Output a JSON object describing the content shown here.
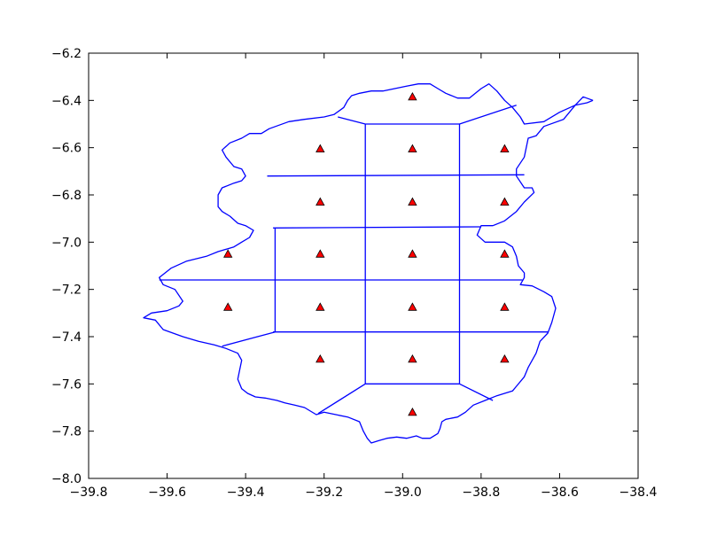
{
  "chart_data": {
    "type": "scatter",
    "title": "",
    "xlabel": "",
    "ylabel": "",
    "xlim": [
      -39.8,
      -38.4
    ],
    "ylim": [
      -8.0,
      -6.2
    ],
    "x_ticks": [
      -39.8,
      -39.6,
      -39.4,
      -39.2,
      -39.0,
      -38.8,
      -38.6,
      -38.4
    ],
    "y_ticks": [
      -8.0,
      -7.8,
      -7.6,
      -7.4,
      -7.2,
      -7.0,
      -6.8,
      -6.6,
      -6.4,
      -6.2
    ],
    "x_tick_labels": [
      "−39.8",
      "−39.6",
      "−39.4",
      "−39.2",
      "−39.0",
      "−38.8",
      "−38.6",
      "−38.4"
    ],
    "y_tick_labels": [
      "−8.0",
      "−7.8",
      "−7.6",
      "−7.4",
      "−7.2",
      "−7.0",
      "−6.8",
      "−6.6",
      "−6.4",
      "−6.2"
    ],
    "grid": false,
    "marker": "triangle",
    "marker_color": "#ff0000",
    "line_color": "#0000ff",
    "points": [
      {
        "x": -38.975,
        "y": -6.385
      },
      {
        "x": -39.21,
        "y": -6.605
      },
      {
        "x": -38.975,
        "y": -6.605
      },
      {
        "x": -38.74,
        "y": -6.605
      },
      {
        "x": -39.21,
        "y": -6.83
      },
      {
        "x": -38.975,
        "y": -6.83
      },
      {
        "x": -38.74,
        "y": -6.83
      },
      {
        "x": -39.445,
        "y": -7.05
      },
      {
        "x": -39.21,
        "y": -7.05
      },
      {
        "x": -38.975,
        "y": -7.05
      },
      {
        "x": -38.74,
        "y": -7.05
      },
      {
        "x": -39.445,
        "y": -7.275
      },
      {
        "x": -39.21,
        "y": -7.275
      },
      {
        "x": -38.975,
        "y": -7.275
      },
      {
        "x": -38.74,
        "y": -7.275
      },
      {
        "x": -39.21,
        "y": -7.495
      },
      {
        "x": -38.975,
        "y": -7.495
      },
      {
        "x": -38.74,
        "y": -7.495
      },
      {
        "x": -38.975,
        "y": -7.72
      }
    ],
    "boundary": [
      [
        -38.515,
        -6.4
      ],
      [
        -38.54,
        -6.385
      ],
      [
        -38.56,
        -6.42
      ],
      [
        -38.59,
        -6.48
      ],
      [
        -38.64,
        -6.51
      ],
      [
        -38.66,
        -6.55
      ],
      [
        -38.68,
        -6.56
      ],
      [
        -38.69,
        -6.64
      ],
      [
        -38.71,
        -6.69
      ],
      [
        -38.71,
        -6.72
      ],
      [
        -38.69,
        -6.77
      ],
      [
        -38.67,
        -6.77
      ],
      [
        -38.665,
        -6.79
      ],
      [
        -38.69,
        -6.83
      ],
      [
        -38.71,
        -6.87
      ],
      [
        -38.74,
        -6.91
      ],
      [
        -38.77,
        -6.93
      ],
      [
        -38.8,
        -6.93
      ],
      [
        -38.81,
        -6.97
      ],
      [
        -38.79,
        -7.0
      ],
      [
        -38.74,
        -7.0
      ],
      [
        -38.72,
        -7.02
      ],
      [
        -38.71,
        -7.06
      ],
      [
        -38.705,
        -7.1
      ],
      [
        -38.69,
        -7.13
      ],
      [
        -38.69,
        -7.15
      ],
      [
        -38.7,
        -7.18
      ],
      [
        -38.67,
        -7.185
      ],
      [
        -38.64,
        -7.21
      ],
      [
        -38.62,
        -7.23
      ],
      [
        -38.61,
        -7.28
      ],
      [
        -38.62,
        -7.34
      ],
      [
        -38.63,
        -7.385
      ],
      [
        -38.65,
        -7.42
      ],
      [
        -38.66,
        -7.47
      ],
      [
        -38.68,
        -7.53
      ],
      [
        -38.69,
        -7.57
      ],
      [
        -38.71,
        -7.61
      ],
      [
        -38.72,
        -7.63
      ],
      [
        -38.74,
        -7.64
      ],
      [
        -38.76,
        -7.65
      ],
      [
        -38.79,
        -7.67
      ],
      [
        -38.82,
        -7.69
      ],
      [
        -38.84,
        -7.72
      ],
      [
        -38.86,
        -7.74
      ],
      [
        -38.89,
        -7.75
      ],
      [
        -38.9,
        -7.76
      ],
      [
        -38.905,
        -7.79
      ],
      [
        -38.91,
        -7.81
      ],
      [
        -38.93,
        -7.83
      ],
      [
        -38.95,
        -7.83
      ],
      [
        -38.965,
        -7.82
      ],
      [
        -38.99,
        -7.83
      ],
      [
        -39.015,
        -7.825
      ],
      [
        -39.04,
        -7.83
      ],
      [
        -39.06,
        -7.84
      ],
      [
        -39.08,
        -7.85
      ],
      [
        -39.09,
        -7.83
      ],
      [
        -39.1,
        -7.8
      ],
      [
        -39.11,
        -7.76
      ],
      [
        -39.14,
        -7.74
      ],
      [
        -39.17,
        -7.73
      ],
      [
        -39.2,
        -7.72
      ],
      [
        -39.22,
        -7.73
      ],
      [
        -39.25,
        -7.7
      ],
      [
        -39.275,
        -7.69
      ],
      [
        -39.3,
        -7.68
      ],
      [
        -39.32,
        -7.67
      ],
      [
        -39.35,
        -7.66
      ],
      [
        -39.375,
        -7.655
      ],
      [
        -39.395,
        -7.64
      ],
      [
        -39.41,
        -7.62
      ],
      [
        -39.42,
        -7.58
      ],
      [
        -39.415,
        -7.54
      ],
      [
        -39.41,
        -7.5
      ],
      [
        -39.42,
        -7.47
      ],
      [
        -39.45,
        -7.45
      ],
      [
        -39.48,
        -7.435
      ],
      [
        -39.52,
        -7.42
      ],
      [
        -39.56,
        -7.4
      ],
      [
        -39.61,
        -7.37
      ],
      [
        -39.63,
        -7.33
      ],
      [
        -39.66,
        -7.32
      ],
      [
        -39.64,
        -7.3
      ],
      [
        -39.6,
        -7.29
      ],
      [
        -39.57,
        -7.27
      ],
      [
        -39.56,
        -7.25
      ],
      [
        -39.58,
        -7.2
      ],
      [
        -39.61,
        -7.18
      ],
      [
        -39.62,
        -7.15
      ],
      [
        -39.59,
        -7.11
      ],
      [
        -39.55,
        -7.08
      ],
      [
        -39.5,
        -7.06
      ],
      [
        -39.47,
        -7.04
      ],
      [
        -39.43,
        -7.02
      ],
      [
        -39.41,
        -7.0
      ],
      [
        -39.39,
        -6.98
      ],
      [
        -39.38,
        -6.95
      ],
      [
        -39.4,
        -6.93
      ],
      [
        -39.42,
        -6.92
      ],
      [
        -39.44,
        -6.89
      ],
      [
        -39.46,
        -6.87
      ],
      [
        -39.47,
        -6.85
      ],
      [
        -39.47,
        -6.8
      ],
      [
        -39.46,
        -6.77
      ],
      [
        -39.43,
        -6.75
      ],
      [
        -39.41,
        -6.74
      ],
      [
        -39.4,
        -6.72
      ],
      [
        -39.41,
        -6.69
      ],
      [
        -39.43,
        -6.68
      ],
      [
        -39.45,
        -6.64
      ],
      [
        -39.46,
        -6.61
      ],
      [
        -39.44,
        -6.58
      ],
      [
        -39.41,
        -6.56
      ],
      [
        -39.39,
        -6.54
      ],
      [
        -39.36,
        -6.54
      ],
      [
        -39.34,
        -6.52
      ],
      [
        -39.29,
        -6.49
      ],
      [
        -39.25,
        -6.48
      ],
      [
        -39.2,
        -6.47
      ],
      [
        -39.175,
        -6.46
      ],
      [
        -39.15,
        -6.43
      ],
      [
        -39.14,
        -6.4
      ],
      [
        -39.13,
        -6.38
      ],
      [
        -39.11,
        -6.37
      ],
      [
        -39.08,
        -6.36
      ],
      [
        -39.05,
        -6.36
      ],
      [
        -39.02,
        -6.35
      ],
      [
        -38.99,
        -6.34
      ],
      [
        -38.96,
        -6.33
      ],
      [
        -38.93,
        -6.33
      ],
      [
        -38.91,
        -6.35
      ],
      [
        -38.89,
        -6.37
      ],
      [
        -38.86,
        -6.39
      ],
      [
        -38.83,
        -6.39
      ],
      [
        -38.8,
        -6.35
      ],
      [
        -38.78,
        -6.33
      ],
      [
        -38.76,
        -6.36
      ],
      [
        -38.74,
        -6.4
      ],
      [
        -38.72,
        -6.43
      ],
      [
        -38.7,
        -6.47
      ],
      [
        -38.69,
        -6.5
      ],
      [
        -38.64,
        -6.49
      ],
      [
        -38.6,
        -6.45
      ],
      [
        -38.56,
        -6.42
      ],
      [
        -38.53,
        -6.41
      ],
      [
        -38.515,
        -6.4
      ]
    ],
    "cell_edges": [
      [
        [
          -39.095,
          -6.5
        ],
        [
          -38.855,
          -6.5
        ]
      ],
      [
        [
          -39.345,
          -6.72
        ],
        [
          -38.69,
          -6.715
        ]
      ],
      [
        [
          -39.33,
          -6.94
        ],
        [
          -38.8,
          -6.935
        ]
      ],
      [
        [
          -39.62,
          -7.16
        ],
        [
          -38.695,
          -7.16
        ]
      ],
      [
        [
          -39.33,
          -7.38
        ],
        [
          -38.63,
          -7.38
        ]
      ],
      [
        [
          -39.095,
          -7.6
        ],
        [
          -38.855,
          -7.6
        ]
      ],
      [
        [
          -39.095,
          -6.5
        ],
        [
          -39.095,
          -7.6
        ]
      ],
      [
        [
          -38.855,
          -6.5
        ],
        [
          -38.855,
          -7.6
        ]
      ],
      [
        [
          -39.325,
          -6.94
        ],
        [
          -39.325,
          -7.38
        ]
      ],
      [
        [
          -39.165,
          -6.47
        ],
        [
          -39.095,
          -6.5
        ]
      ],
      [
        [
          -38.855,
          -6.5
        ],
        [
          -38.71,
          -6.42
        ]
      ],
      [
        [
          -39.325,
          -7.38
        ],
        [
          -39.46,
          -7.44
        ]
      ],
      [
        [
          -39.095,
          -7.6
        ],
        [
          -39.215,
          -7.725
        ]
      ],
      [
        [
          -38.855,
          -7.6
        ],
        [
          -38.77,
          -7.67
        ]
      ]
    ]
  }
}
